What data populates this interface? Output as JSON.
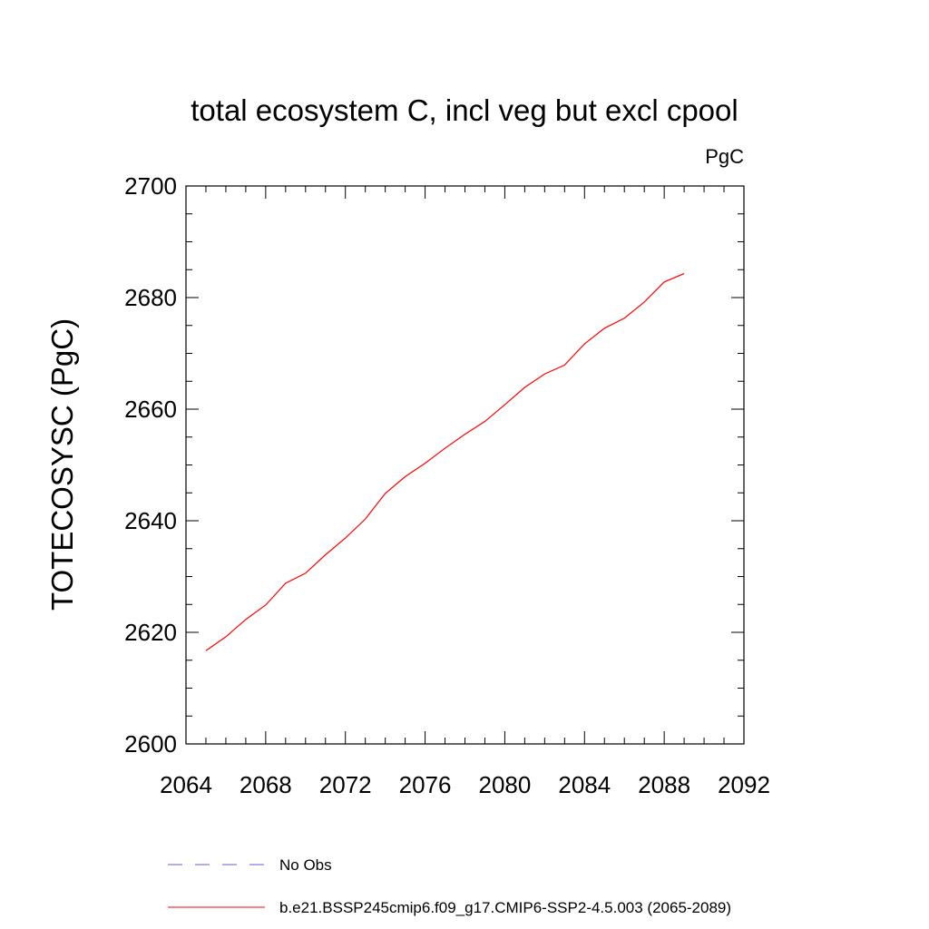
{
  "chart_data": {
    "type": "line",
    "title": "total ecosystem C, incl veg but excl cpool",
    "units_label": "PgC",
    "xlabel": "",
    "ylabel": "TOTECOSYSC  (PgC)",
    "xlim": [
      2064,
      2092
    ],
    "ylim": [
      2600,
      2700
    ],
    "xticks": [
      2064,
      2068,
      2072,
      2076,
      2080,
      2084,
      2088,
      2092
    ],
    "yticks": [
      2600,
      2620,
      2640,
      2660,
      2680,
      2700
    ],
    "xtick_labels": [
      "2064",
      "2068",
      "2072",
      "2076",
      "2080",
      "2084",
      "2088",
      "2092"
    ],
    "ytick_labels": [
      "2600",
      "2620",
      "2640",
      "2660",
      "2680",
      "2700"
    ],
    "grid": false,
    "legend_position": "bottom",
    "series": [
      {
        "name": "No Obs",
        "color": "#6a5acd",
        "style": "dashed",
        "x": [],
        "y": []
      },
      {
        "name": "b.e21.BSSP245cmip6.f09_g17.CMIP6-SSP2-4.5.003 (2065-2089)",
        "color": "#ff0000",
        "style": "solid",
        "x": [
          2065,
          2066,
          2067,
          2068,
          2069,
          2070,
          2071,
          2072,
          2073,
          2074,
          2075,
          2076,
          2077,
          2078,
          2079,
          2080,
          2081,
          2082,
          2083,
          2084,
          2085,
          2086,
          2087,
          2088,
          2089
        ],
        "y": [
          2616.7,
          2619.2,
          2622.3,
          2624.9,
          2628.8,
          2630.6,
          2633.9,
          2636.9,
          2640.3,
          2644.9,
          2647.9,
          2650.3,
          2653.0,
          2655.5,
          2657.8,
          2660.8,
          2663.9,
          2666.3,
          2667.9,
          2671.7,
          2674.5,
          2676.3,
          2679.2,
          2682.8,
          2684.3
        ]
      }
    ]
  }
}
